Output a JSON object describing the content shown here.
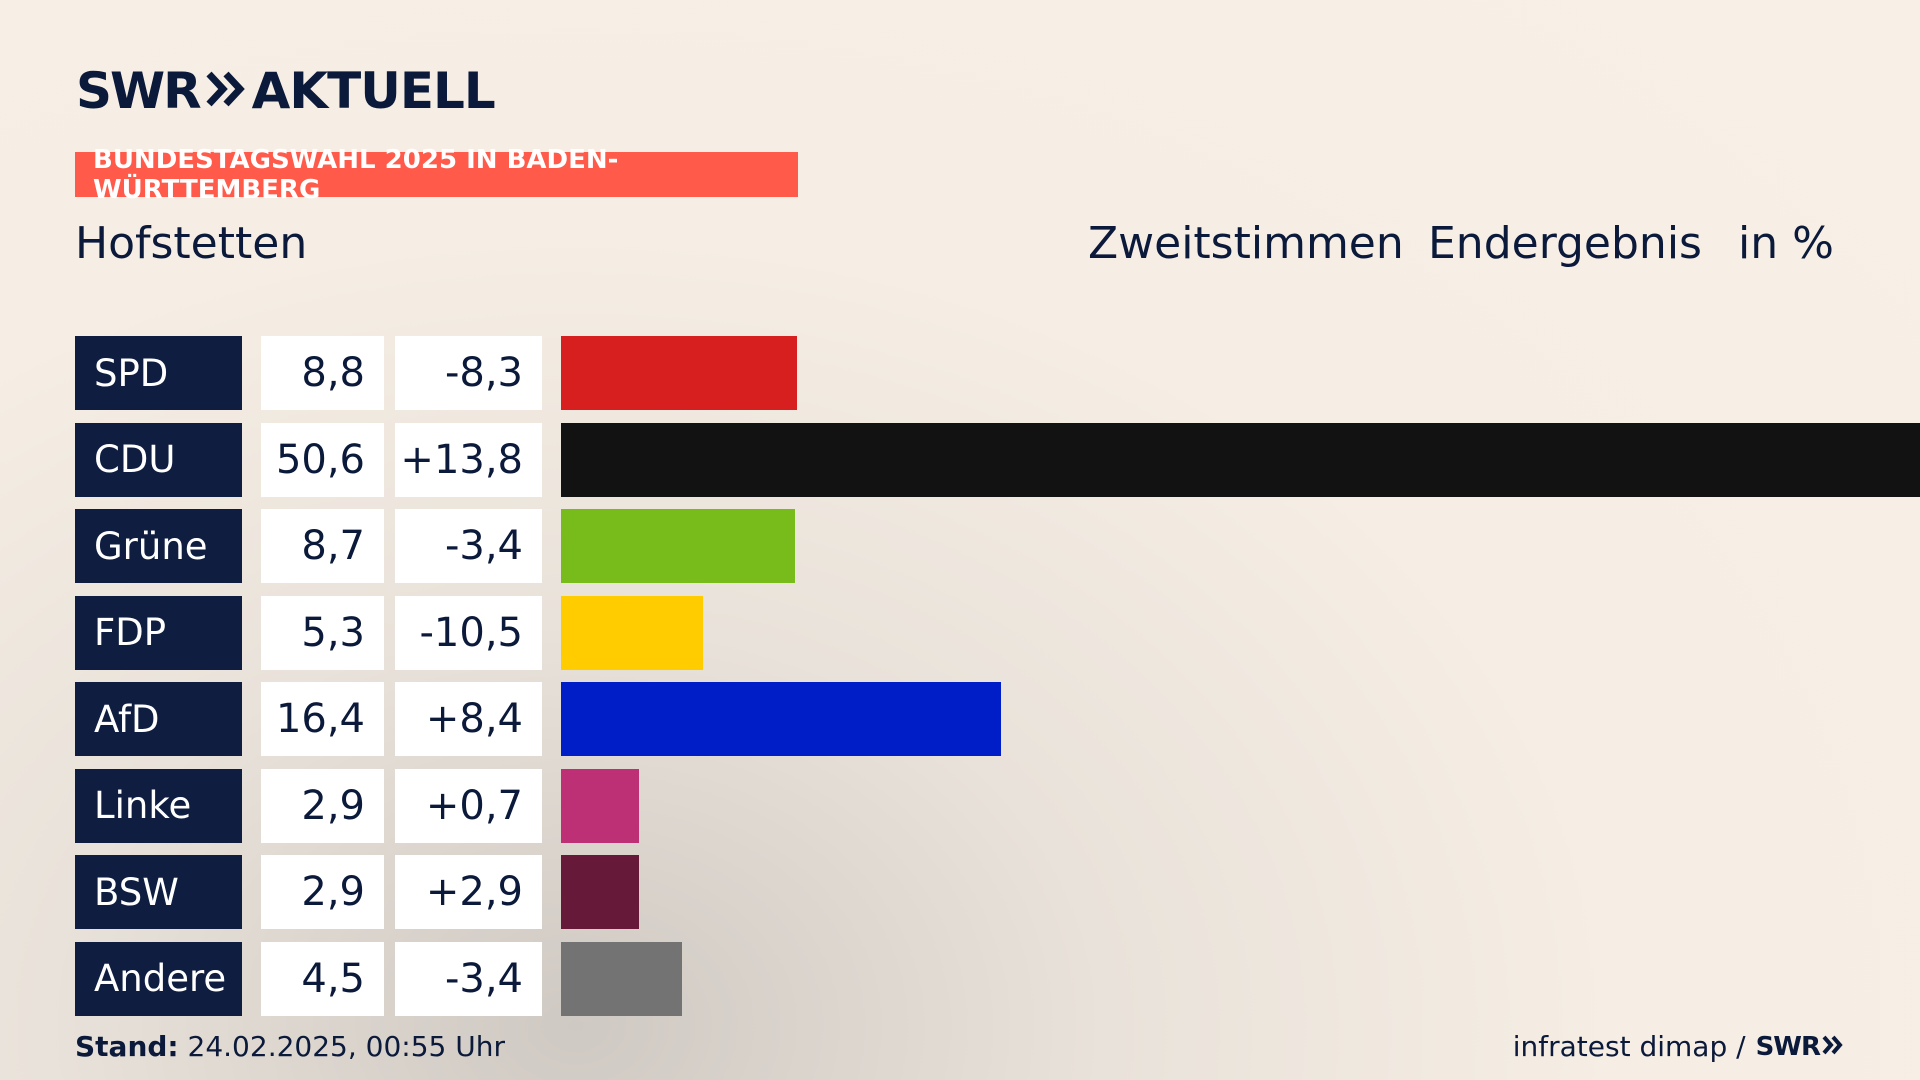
{
  "brand": {
    "swr": "SWR",
    "aktuell": "AKTUELL"
  },
  "banner": "BUNDESTAGSWAHL 2025 IN BADEN-WÜRTTEMBERG",
  "place": "Hofstetten",
  "header": {
    "votes": "Zweitstimmen",
    "status": "Endergebnis",
    "unit": "in %"
  },
  "colors": {
    "SPD": "#d71f20",
    "CDU": "#121212",
    "Grüne": "#78bc1b",
    "FDP": "#ffcc00",
    "AfD": "#001ec8",
    "Linke": "#bd3075",
    "BSW": "#661938",
    "Andere": "#737373"
  },
  "chart_data": {
    "type": "bar",
    "categories": [
      "SPD",
      "CDU",
      "Grüne",
      "FDP",
      "AfD",
      "Linke",
      "BSW",
      "Andere"
    ],
    "values": [
      8.8,
      50.6,
      8.7,
      5.3,
      16.4,
      2.9,
      2.9,
      4.5
    ],
    "value_labels": [
      "8,8",
      "50,6",
      "8,7",
      "5,3",
      "16,4",
      "2,9",
      "2,9",
      "4,5"
    ],
    "diff_labels": [
      "-8,3",
      "+13,8",
      "-3,4",
      "-10,5",
      "+8,4",
      "+0,7",
      "+2,9",
      "-3,4"
    ],
    "diffs": [
      -8.3,
      13.8,
      -3.4,
      -10.5,
      8.4,
      0.7,
      2.9,
      -3.4
    ],
    "orientation": "horizontal"
  },
  "footer": {
    "stand_label": "Stand:",
    "stand_value": "24.02.2025, 00:55 Uhr",
    "source": "infratest dimap /",
    "source_brand": "SWR"
  }
}
